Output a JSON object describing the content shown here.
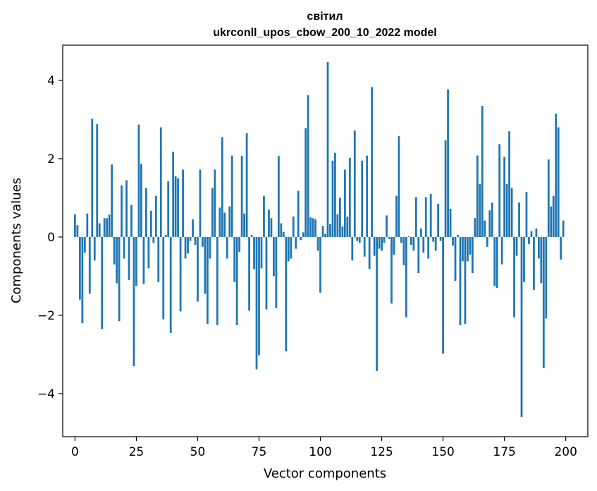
{
  "chart_data": {
    "type": "bar",
    "title": "світил",
    "subtitle": "ukrconll_upos_cbow_200_10_2022 model",
    "xlabel": "Vector components",
    "ylabel": "Components values",
    "xlim": [
      -5,
      209
    ],
    "ylim": [
      -5.1,
      4.9
    ],
    "xticks": [
      0,
      25,
      50,
      75,
      100,
      125,
      150,
      175,
      200
    ],
    "yticks": [
      -4,
      -2,
      0,
      2,
      4
    ],
    "ytick_labels": [
      "−4",
      "−2",
      "0",
      "2",
      "4"
    ],
    "grid": false,
    "bar_color": "#1f77b4",
    "x": [
      0,
      1,
      2,
      3,
      4,
      5,
      6,
      7,
      8,
      9,
      10,
      11,
      12,
      13,
      14,
      15,
      16,
      17,
      18,
      19,
      20,
      21,
      22,
      23,
      24,
      25,
      26,
      27,
      28,
      29,
      30,
      31,
      32,
      33,
      34,
      35,
      36,
      37,
      38,
      39,
      40,
      41,
      42,
      43,
      44,
      45,
      46,
      47,
      48,
      49,
      50,
      51,
      52,
      53,
      54,
      55,
      56,
      57,
      58,
      59,
      60,
      61,
      62,
      63,
      64,
      65,
      66,
      67,
      68,
      69,
      70,
      71,
      72,
      73,
      74,
      75,
      76,
      77,
      78,
      79,
      80,
      81,
      82,
      83,
      84,
      85,
      86,
      87,
      88,
      89,
      90,
      91,
      92,
      93,
      94,
      95,
      96,
      97,
      98,
      99,
      100,
      101,
      102,
      103,
      104,
      105,
      106,
      107,
      108,
      109,
      110,
      111,
      112,
      113,
      114,
      115,
      116,
      117,
      118,
      119,
      120,
      121,
      122,
      123,
      124,
      125,
      126,
      127,
      128,
      129,
      130,
      131,
      132,
      133,
      134,
      135,
      136,
      137,
      138,
      139,
      140,
      141,
      142,
      143,
      144,
      145,
      146,
      147,
      148,
      149,
      150,
      151,
      152,
      153,
      154,
      155,
      156,
      157,
      158,
      159,
      160,
      161,
      162,
      163,
      164,
      165,
      166,
      167,
      168,
      169,
      170,
      171,
      172,
      173,
      174,
      175,
      176,
      177,
      178,
      179,
      180,
      181,
      182,
      183,
      184,
      185,
      186,
      187,
      188,
      189,
      190,
      191,
      192,
      193,
      194,
      195,
      196,
      197,
      198,
      199
    ],
    "values": [
      0.58,
      0.3,
      -1.6,
      -2.2,
      -0.4,
      0.6,
      -1.45,
      3.02,
      -0.6,
      2.88,
      0.35,
      -2.35,
      0.48,
      0.48,
      0.57,
      1.85,
      -0.7,
      -1.18,
      -2.15,
      1.32,
      -0.55,
      1.45,
      -1.1,
      0.82,
      -3.3,
      -1.25,
      2.87,
      1.87,
      -1.2,
      1.25,
      -0.8,
      0.67,
      -0.15,
      1.05,
      -1.15,
      2.8,
      -2.1,
      0.05,
      1.42,
      -2.45,
      2.18,
      1.55,
      1.5,
      -1.9,
      1.72,
      -0.55,
      -0.42,
      -0.1,
      0.45,
      -0.2,
      -1.65,
      1.72,
      -0.25,
      -1.45,
      -2.22,
      -0.55,
      1.25,
      1.72,
      -2.25,
      0.75,
      2.55,
      0.62,
      -0.55,
      0.78,
      2.08,
      -1.15,
      -2.25,
      -0.38,
      2.07,
      0.6,
      2.65,
      -1.88,
      0.05,
      -0.82,
      -3.38,
      -3.02,
      -0.8,
      1.05,
      -1.85,
      0.7,
      0.48,
      -1.0,
      -1.82,
      2.07,
      0.35,
      0.13,
      -2.92,
      -0.62,
      -0.55,
      0.52,
      -0.3,
      1.18,
      -0.08,
      0.12,
      2.78,
      3.62,
      0.5,
      0.48,
      0.45,
      -0.35,
      -1.42,
      0.28,
      0.08,
      4.47,
      0.33,
      1.95,
      2.15,
      0.58,
      1.0,
      0.27,
      1.72,
      0.52,
      2.02,
      -0.6,
      2.72,
      -0.1,
      -0.15,
      1.95,
      -0.5,
      2.08,
      -0.82,
      3.83,
      -0.48,
      -3.42,
      -0.3,
      -0.35,
      -0.15,
      0.55,
      -0.05,
      -1.7,
      -0.45,
      1.05,
      2.58,
      -0.15,
      -0.72,
      -2.05,
      0.02,
      -0.2,
      -0.35,
      1.02,
      -0.92,
      0.22,
      -0.4,
      1.02,
      -0.55,
      1.1,
      -0.12,
      -0.35,
      0.85,
      -0.1,
      -2.98,
      2.47,
      3.77,
      0.72,
      -0.22,
      -1.12,
      0.05,
      -2.25,
      -0.62,
      -2.22,
      -0.62,
      -0.45,
      -0.92,
      0.48,
      2.08,
      1.35,
      3.35,
      0.42,
      -0.25,
      0.68,
      0.88,
      -1.25,
      -1.3,
      2.37,
      -0.7,
      2.05,
      1.35,
      2.7,
      1.25,
      -2.05,
      -0.48,
      0.88,
      -4.6,
      -1.15,
      1.15,
      -0.18,
      0.15,
      -1.35,
      0.22,
      -0.55,
      -1.18,
      -3.35,
      -2.08,
      1.98,
      0.78,
      1.05,
      3.15,
      2.8,
      -0.58,
      0.42
    ]
  }
}
